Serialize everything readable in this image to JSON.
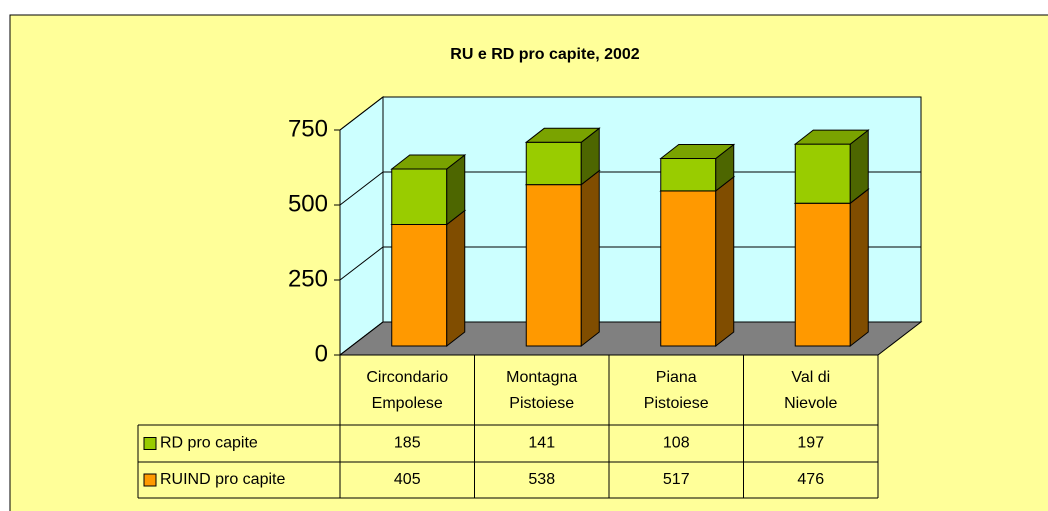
{
  "chart_data": {
    "type": "bar",
    "stacked": true,
    "three_d": true,
    "title": "RU e RD pro capite, 2002",
    "categories": [
      [
        "Circondario",
        "Empolese"
      ],
      [
        "Montagna",
        "Pistoiese"
      ],
      [
        "Piana",
        "Pistoiese"
      ],
      [
        "Val di",
        "Nievole"
      ]
    ],
    "series": [
      {
        "name": "RD pro capite",
        "color": "#99cc00",
        "values": [
          185,
          141,
          108,
          197
        ]
      },
      {
        "name": "RUIND pro capite",
        "color": "#ff9900",
        "values": [
          405,
          538,
          517,
          476
        ]
      }
    ],
    "ylim": [
      0,
      750
    ],
    "yticks": [
      0,
      250,
      500,
      750
    ],
    "grid": true,
    "data_table": true
  }
}
